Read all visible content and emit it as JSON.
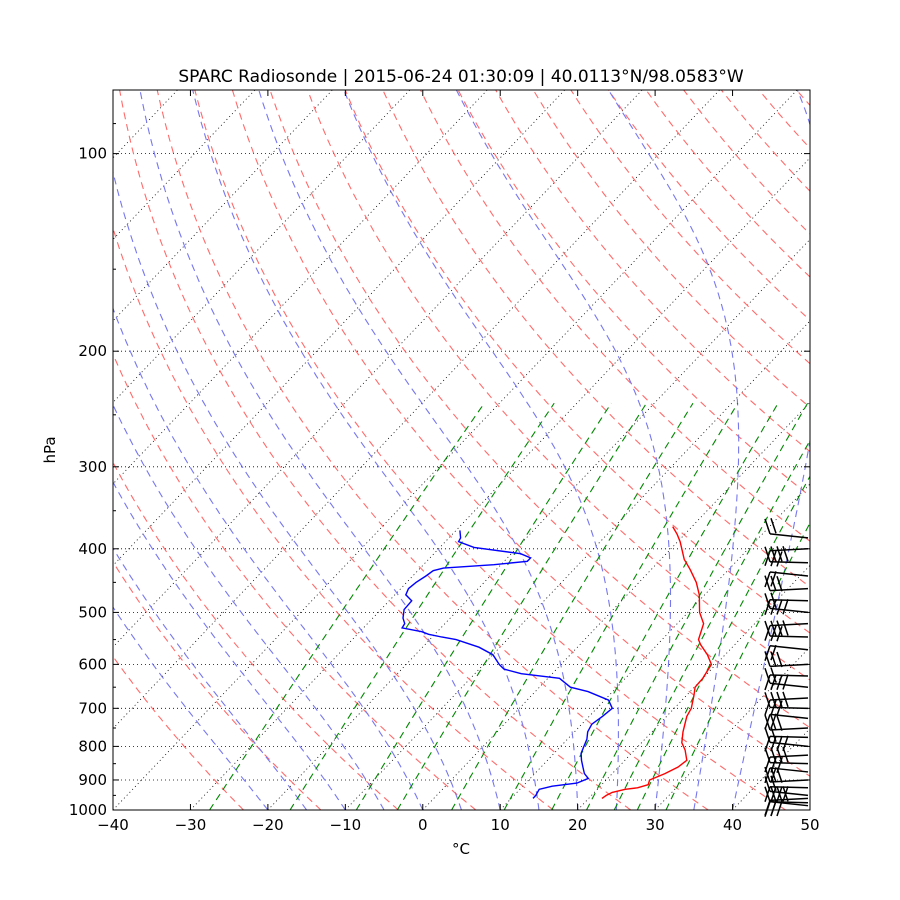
{
  "chart_data": {
    "type": "line",
    "title": "SPARC Radiosonde | 2015-06-24 01:30:09 | 40.0113°N/98.0583°W",
    "xlabel": "°C",
    "ylabel": "hPa",
    "x_scale": "linear, skewed",
    "y_scale": "log",
    "xlim": [
      -40,
      50
    ],
    "ylim": [
      1000,
      80
    ],
    "x_ticks": [
      -40,
      -30,
      -20,
      -10,
      0,
      10,
      20,
      30,
      40,
      50
    ],
    "x_tick_labels": [
      "−40",
      "−30",
      "−20",
      "−10",
      "0",
      "10",
      "20",
      "30",
      "40",
      "50"
    ],
    "y_ticks": [
      100,
      200,
      300,
      400,
      500,
      600,
      700,
      800,
      900,
      1000
    ],
    "grid": true,
    "colors": {
      "temperature": "#ff0000",
      "dewpoint": "#0000ff",
      "dry_adiabats": "#ff6b6b",
      "moist_adiabats": "#7777ee",
      "mixing_ratio": "#008800",
      "grid": "#000000",
      "wind_barbs": "#000000"
    },
    "series": [
      {
        "points": [
          [
            960,
            21.7
          ],
          [
            950,
            21.9
          ],
          [
            940,
            22.3
          ],
          [
            930,
            23.6
          ],
          [
            925,
            25.0
          ],
          [
            915,
            26.0
          ],
          [
            900,
            25.6
          ],
          [
            880,
            26.8
          ],
          [
            860,
            27.7
          ],
          [
            840,
            28.0
          ],
          [
            810,
            26.5
          ],
          [
            790,
            25.2
          ],
          [
            760,
            24.0
          ],
          [
            720,
            22.6
          ],
          [
            700,
            22.2
          ],
          [
            670,
            21.0
          ],
          [
            650,
            20.1
          ],
          [
            630,
            20.0
          ],
          [
            600,
            19.4
          ],
          [
            580,
            17.7
          ],
          [
            560,
            15.6
          ],
          [
            550,
            14.7
          ],
          [
            520,
            13.4
          ],
          [
            500,
            11.5
          ],
          [
            470,
            9.3
          ],
          [
            450,
            7.4
          ],
          [
            430,
            5.0
          ],
          [
            415,
            3.0
          ],
          [
            400,
            1.4
          ],
          [
            390,
            0.3
          ],
          [
            380,
            -1.0
          ],
          [
            370,
            -2.5
          ]
        ]
      },
      {
        "points": [
          [
            960,
            12.8
          ],
          [
            950,
            12.8
          ],
          [
            930,
            12.5
          ],
          [
            920,
            13.8
          ],
          [
            910,
            16.6
          ],
          [
            895,
            17.5
          ],
          [
            880,
            16.4
          ],
          [
            860,
            15.4
          ],
          [
            840,
            14.4
          ],
          [
            820,
            13.5
          ],
          [
            800,
            13.0
          ],
          [
            780,
            12.5
          ],
          [
            760,
            11.7
          ],
          [
            740,
            11.3
          ],
          [
            720,
            11.7
          ],
          [
            700,
            12.0
          ],
          [
            680,
            10.5
          ],
          [
            660,
            6.8
          ],
          [
            650,
            4.0
          ],
          [
            630,
            1.5
          ],
          [
            620,
            -4.0
          ],
          [
            610,
            -6.8
          ],
          [
            600,
            -8.0
          ],
          [
            580,
            -10.0
          ],
          [
            565,
            -12.7
          ],
          [
            550,
            -16.6
          ],
          [
            545,
            -18.8
          ],
          [
            540,
            -20.8
          ],
          [
            535,
            -22.0
          ],
          [
            528,
            -25.0
          ],
          [
            520,
            -25.2
          ],
          [
            510,
            -26.1
          ],
          [
            495,
            -27.0
          ],
          [
            480,
            -27.1
          ],
          [
            470,
            -28.6
          ],
          [
            460,
            -29.0
          ],
          [
            450,
            -28.8
          ],
          [
            440,
            -28.3
          ],
          [
            432,
            -28.0
          ],
          [
            428,
            -27.0
          ],
          [
            423,
            -20.9
          ],
          [
            418,
            -17.0
          ],
          [
            413,
            -17.0
          ],
          [
            407,
            -18.8
          ],
          [
            398,
            -25.6
          ],
          [
            390,
            -28.3
          ],
          [
            385,
            -28.5
          ],
          [
            375,
            -29.5
          ]
        ]
      }
    ],
    "wind_barbs": {
      "levels_hPa": [
        385,
        400,
        420,
        440,
        460,
        480,
        500,
        520,
        545,
        570,
        600,
        625,
        650,
        675,
        700,
        725,
        750,
        775,
        800,
        825,
        850,
        875,
        900,
        925,
        950,
        960,
        975,
        985
      ]
    }
  }
}
